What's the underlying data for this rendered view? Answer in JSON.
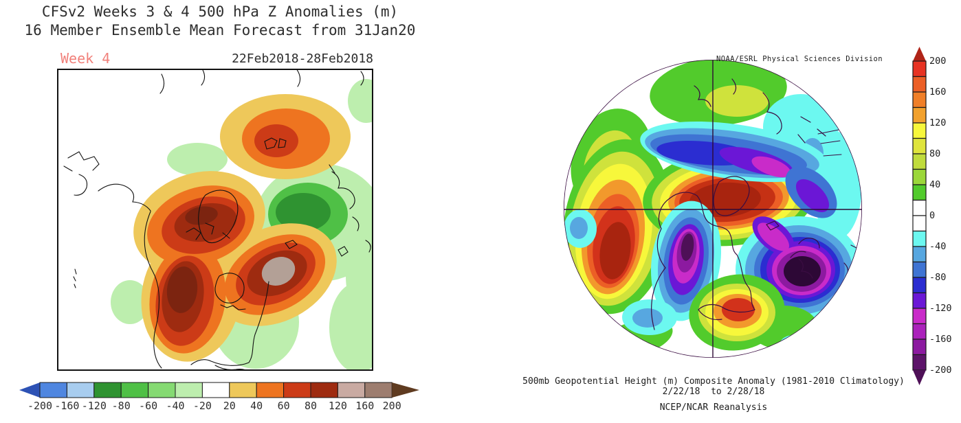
{
  "left_panel": {
    "title_line1": "CFSv2 Weeks 3 & 4 500 hPa Z Anomalies (m)",
    "title_line2": "16 Member Ensemble Mean Forecast from 31Jan20",
    "week_label": "Week 4",
    "week_label_color": "#f1807a",
    "date_range": "22Feb2018-28Feb2018",
    "colorbar": {
      "orientation": "horizontal",
      "tick_labels": [
        "-200",
        "-160",
        "-120",
        "-80",
        "-60",
        "-40",
        "-20",
        "20",
        "40",
        "60",
        "80",
        "120",
        "160",
        "200"
      ],
      "cell_colors": [
        "#4f86e0",
        "#a8cdef",
        "#2f9331",
        "#4fc046",
        "#85da72",
        "#bdeeae",
        "#ffffff",
        "#eec85a",
        "#ee7420",
        "#cc3b17",
        "#9e2b10",
        "#c9aaa2",
        "#9d7d6f"
      ],
      "arrow_low_color": "#2d52b5",
      "arrow_high_color": "#5f3b20"
    }
  },
  "right_panel": {
    "source_title": "NOAA/ESRL Physical Sciences Division",
    "caption_line1": "500mb Geopotential Height (m) Composite Anomaly (1981-2010 Climatology)",
    "caption_line2": "2/22/18  to 2/28/18",
    "caption_line3": "NCEP/NCAR Reanalysis",
    "colorbar": {
      "orientation": "vertical",
      "tick_labels": [
        "200",
        "160",
        "120",
        "80",
        "40",
        "0",
        "-40",
        "-80",
        "-120",
        "-160",
        "-200"
      ],
      "cell_colors": [
        "#e73323",
        "#ec5f26",
        "#f07f28",
        "#f2a12d",
        "#f7f73b",
        "#dfe43c",
        "#c0dc3c",
        "#9bd73a",
        "#52cb2c",
        "#ffffff",
        "#ffffff",
        "#6cf8f0",
        "#57a7e0",
        "#3f74d3",
        "#2b2dd1",
        "#6b17d6",
        "#c92bc9",
        "#ab22bb",
        "#8c1aa0",
        "#5c1369"
      ],
      "arrow_high_color": "#b02418",
      "arrow_low_color": "#4e1057"
    }
  }
}
